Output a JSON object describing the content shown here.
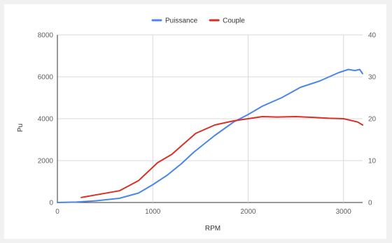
{
  "chart_data": {
    "type": "line",
    "xlabel": "RPM",
    "ylabel": "Pu",
    "xlim": [
      0,
      3200
    ],
    "ylim": [
      0,
      8000
    ],
    "y2lim": [
      0,
      40
    ],
    "x_ticks": [
      0,
      1000,
      2000,
      3000
    ],
    "y_ticks": [
      0,
      2000,
      4000,
      6000,
      8000
    ],
    "y2_ticks": [
      0,
      10,
      20,
      30,
      40
    ],
    "legend_position": "top",
    "grid": true,
    "series": [
      {
        "name": "Puissance",
        "axis": "left",
        "color": "#4a86e8",
        "points": [
          [
            0,
            0
          ],
          [
            200,
            20
          ],
          [
            400,
            80
          ],
          [
            650,
            200
          ],
          [
            850,
            450
          ],
          [
            1000,
            850
          ],
          [
            1150,
            1300
          ],
          [
            1300,
            1850
          ],
          [
            1430,
            2400
          ],
          [
            1650,
            3200
          ],
          [
            1850,
            3850
          ],
          [
            2000,
            4200
          ],
          [
            2150,
            4600
          ],
          [
            2350,
            5000
          ],
          [
            2550,
            5500
          ],
          [
            2750,
            5800
          ],
          [
            2950,
            6200
          ],
          [
            3050,
            6350
          ],
          [
            3120,
            6300
          ],
          [
            3170,
            6350
          ],
          [
            3200,
            6150
          ]
        ]
      },
      {
        "name": "Couple",
        "axis": "right",
        "color": "#d93025",
        "points": [
          [
            250,
            1.2
          ],
          [
            400,
            1.8
          ],
          [
            650,
            2.8
          ],
          [
            850,
            5.2
          ],
          [
            1050,
            9.5
          ],
          [
            1200,
            11.5
          ],
          [
            1350,
            14.5
          ],
          [
            1450,
            16.5
          ],
          [
            1650,
            18.5
          ],
          [
            1850,
            19.5
          ],
          [
            2000,
            20.0
          ],
          [
            2150,
            20.5
          ],
          [
            2300,
            20.4
          ],
          [
            2500,
            20.5
          ],
          [
            2700,
            20.3
          ],
          [
            2850,
            20.1
          ],
          [
            3000,
            20.0
          ],
          [
            3150,
            19.2
          ],
          [
            3200,
            18.5
          ]
        ]
      }
    ]
  }
}
